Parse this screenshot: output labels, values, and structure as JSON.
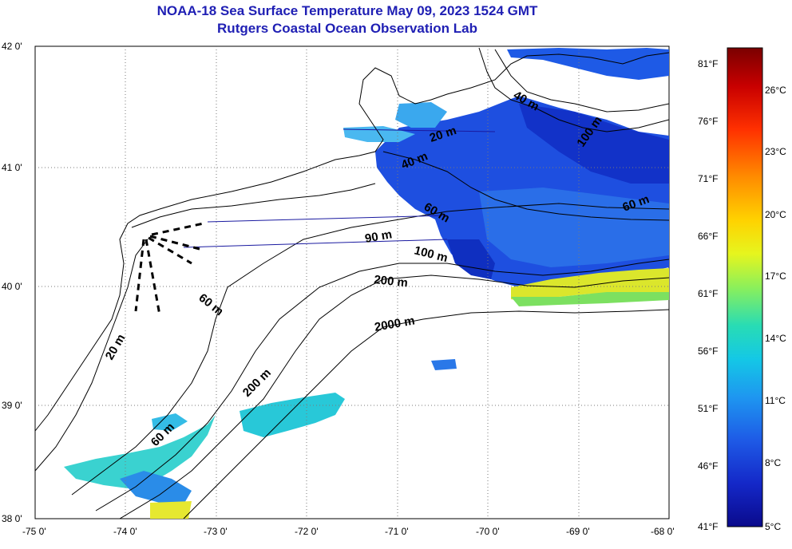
{
  "title": {
    "line1": "NOAA-18 Sea Surface Temperature May 09, 2023 1524 GMT",
    "line2": "Rutgers Coastal Ocean Observation Lab"
  },
  "axes": {
    "lat_labels": [
      "42 0'",
      "41 0'",
      "40 0'",
      "39 0'",
      "38 0'"
    ],
    "lon_labels": [
      "-75 0'",
      "-74 0'",
      "-73 0'",
      "-72 0'",
      "-71 0'",
      "-70 0'",
      "-69 0'",
      "-68 0'"
    ]
  },
  "contour_labels": [
    "20 m",
    "40 m",
    "60 m",
    "90 m",
    "100 m",
    "200 m",
    "2000 m",
    "60 m",
    "20 m",
    "200 m",
    "60 m",
    "40 m",
    "100 m",
    "60 m"
  ],
  "colorbar": {
    "f_labels": [
      "81°F",
      "76°F",
      "71°F",
      "66°F",
      "61°F",
      "56°F",
      "51°F",
      "46°F",
      "41°F"
    ],
    "c_labels": [
      "26°C",
      "23°C",
      "20°C",
      "17°C",
      "14°C",
      "11°C",
      "8°C",
      "5°C"
    ],
    "colors": [
      "#7a0000",
      "#c80000",
      "#ff3000",
      "#ff8c00",
      "#ffd200",
      "#e6f51e",
      "#8cf05a",
      "#28dcb4",
      "#14c8e6",
      "#1e96f0",
      "#1e5ae6",
      "#1428c8",
      "#0a0a8c"
    ]
  }
}
